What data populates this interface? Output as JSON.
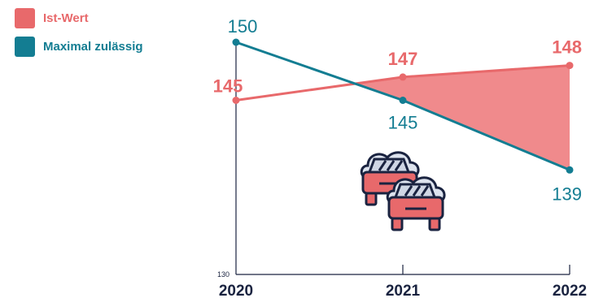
{
  "legend": {
    "items": [
      {
        "label": "Ist-Wert",
        "color": "#e8696b"
      },
      {
        "label": "Maximal zulässig",
        "color": "#137d92"
      }
    ]
  },
  "chart_data": {
    "type": "line",
    "categories": [
      "2020",
      "2021",
      "2022"
    ],
    "series": [
      {
        "name": "Ist-Wert",
        "values": [
          145,
          147,
          148
        ],
        "color": "#e8696b",
        "label_bold": true
      },
      {
        "name": "Maximal zulässig",
        "values": [
          150,
          145,
          139
        ],
        "color": "#137d92",
        "label_bold": false
      }
    ],
    "y_min_label": "130",
    "ylim": [
      130,
      150
    ],
    "fill_between": "Ist-Wert above Maximal zulässig",
    "fill_color": "#f08a8c",
    "axis_color": "#1a2340",
    "icon": "traffic-jam-cars-icon"
  }
}
